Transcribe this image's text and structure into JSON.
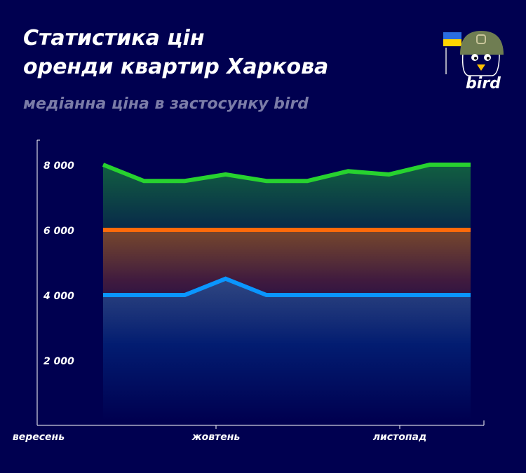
{
  "header": {
    "title_line1": "Статистика цін",
    "title_line2": "оренди квартир Харкова",
    "subtitle": "медіанна ціна в застосунку bird"
  },
  "logo": {
    "text": "bird",
    "icon": "bird-in-helmet-with-ukraine-flag"
  },
  "colors": {
    "background": "#000050",
    "green": "#27d22f",
    "orange": "#ff6a0a",
    "blue": "#0a96ff"
  },
  "chart_data": {
    "type": "area",
    "title": "Статистика цін оренди квартир Харкова",
    "subtitle": "медіанна ціна в застосунку bird",
    "x_tick_labels": [
      "вересень",
      "жовтень",
      "листопад"
    ],
    "y_tick_labels": [
      "2 000",
      "4 000",
      "6 000",
      "8 000"
    ],
    "y_ticks": [
      2000,
      4000,
      6000,
      8000
    ],
    "ylim": [
      0,
      8300
    ],
    "grid": false,
    "series": [
      {
        "color": "#27d22f",
        "values": [
          8000,
          7500,
          7500,
          7700,
          7500,
          7500,
          7800,
          7700,
          8000,
          8000
        ]
      },
      {
        "color": "#ff6a0a",
        "values": [
          6000,
          6000,
          6000,
          6000,
          6000,
          6000,
          6000,
          6000,
          6000,
          6000
        ]
      },
      {
        "color": "#0a96ff",
        "values": [
          4000,
          4000,
          4000,
          4500,
          4000,
          4000,
          4000,
          4000,
          4000,
          4000
        ]
      }
    ]
  }
}
